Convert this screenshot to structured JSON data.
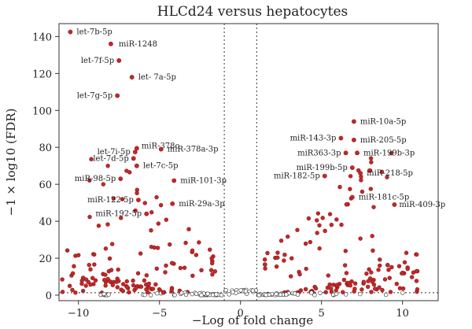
{
  "chart_data": {
    "type": "scatter",
    "title": "HLCd24 versus hepatocytes",
    "xlabel": "−Log of fold change",
    "ylabel": "−1 × log10 (FDR)",
    "xlim": [
      -11.2,
      12.2
    ],
    "ylim": [
      -3,
      147
    ],
    "xticks": [
      -10,
      -5,
      0,
      5,
      10
    ],
    "yticks": [
      0,
      20,
      40,
      60,
      80,
      100,
      120,
      140
    ],
    "grid": false,
    "legend": "none",
    "fold_change_thresholds": [
      -1,
      1
    ],
    "fdr_threshold": 1.3,
    "colors": {
      "significant": "#c62828",
      "not_significant": "#ffffff",
      "threshold_line": "#333333"
    },
    "labeled_points": [
      {
        "label": "let-7b-5p",
        "x": -10.5,
        "y": 142.5
      },
      {
        "label": "miR-1248",
        "x": -8.0,
        "y": 136.0
      },
      {
        "label": "let-7f-5p",
        "x": -7.5,
        "y": 127.0
      },
      {
        "label": "let- 7a-5p",
        "x": -6.7,
        "y": 118.0
      },
      {
        "label": "let-7g-5p",
        "x": -7.6,
        "y": 108.0
      },
      {
        "label": "let-7i-5p",
        "x": -6.5,
        "y": 77.5
      },
      {
        "label": "let-7d-5p",
        "x": -6.6,
        "y": 74.0
      },
      {
        "label": "miR-378c",
        "x": -6.4,
        "y": 79.5
      },
      {
        "label": "miR-378a-3p",
        "x": -4.9,
        "y": 79.0
      },
      {
        "label": "let-7c-5p",
        "x": -6.4,
        "y": 70.0
      },
      {
        "label": "miR-98-5p",
        "x": -7.4,
        "y": 63.0
      },
      {
        "label": "miR-101-3p",
        "x": -4.1,
        "y": 62.0
      },
      {
        "label": "miR-122-5p",
        "x": -6.3,
        "y": 51.5
      },
      {
        "label": "miR-29a-3p",
        "x": -4.2,
        "y": 49.5
      },
      {
        "label": "miR-192-5p",
        "x": -5.8,
        "y": 44.0
      },
      {
        "label": "miR-10a-5p",
        "x": 7.0,
        "y": 94.0
      },
      {
        "label": "miR-143-3p",
        "x": 6.2,
        "y": 85.0
      },
      {
        "label": "miR-205-5p",
        "x": 7.0,
        "y": 84.0
      },
      {
        "label": "miR363-3p",
        "x": 6.5,
        "y": 77.0
      },
      {
        "label": "miR-199b-3p",
        "x": 7.2,
        "y": 77.0
      },
      {
        "label": "miR-199b-5p",
        "x": 6.9,
        "y": 69.0
      },
      {
        "label": "miR-218-5p",
        "x": 7.4,
        "y": 66.0
      },
      {
        "label": "miR-182-5p",
        "x": 5.2,
        "y": 64.5
      },
      {
        "label": "miR-181c-5p",
        "x": 6.9,
        "y": 53.0
      },
      {
        "label": "miR-409-3p",
        "x": 9.5,
        "y": 49.0
      }
    ]
  }
}
